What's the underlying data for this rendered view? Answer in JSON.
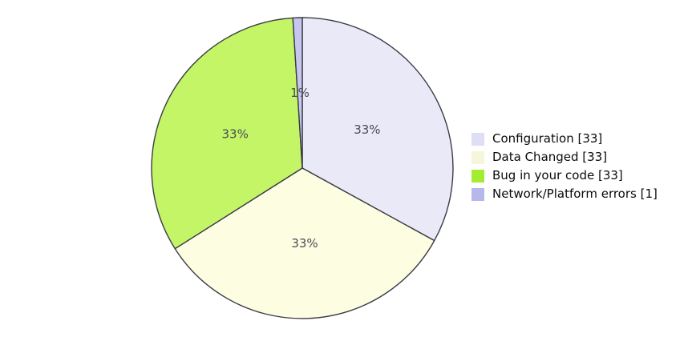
{
  "chart_data": {
    "type": "pie",
    "title": "",
    "legend_position": "right",
    "start_angle_deg": 0,
    "direction": "clockwise",
    "total": 100,
    "categories": [
      "Configuration",
      "Data Changed",
      "Bug in your code",
      "Network/Platform errors"
    ],
    "values": [
      33,
      33,
      33,
      1
    ],
    "series": [
      {
        "name": "Configuration",
        "value": 33,
        "percent_label": "33%",
        "legend_label": "Configuration [33]",
        "slice_color": "#e9e9f7",
        "legend_color": "#dedef5"
      },
      {
        "name": "Data Changed",
        "value": 33,
        "percent_label": "33%",
        "legend_label": "Data Changed [33]",
        "slice_color": "#fdfde2",
        "legend_color": "#f6f6da"
      },
      {
        "name": "Bug in your code",
        "value": 33,
        "percent_label": "33%",
        "legend_label": "Bug in your code [33]",
        "slice_color": "#c3f567",
        "legend_color": "#a4eb33"
      },
      {
        "name": "Network/Platform errors",
        "value": 1,
        "percent_label": "1%",
        "legend_label": "Network/Platform errors [1]",
        "slice_color": "#c6c6ee",
        "legend_color": "#b7b7eb"
      }
    ],
    "colors": {
      "background": "#ffffff",
      "slice_outline": "#3b3b45",
      "slice_label_text": "#4b4b57"
    }
  }
}
